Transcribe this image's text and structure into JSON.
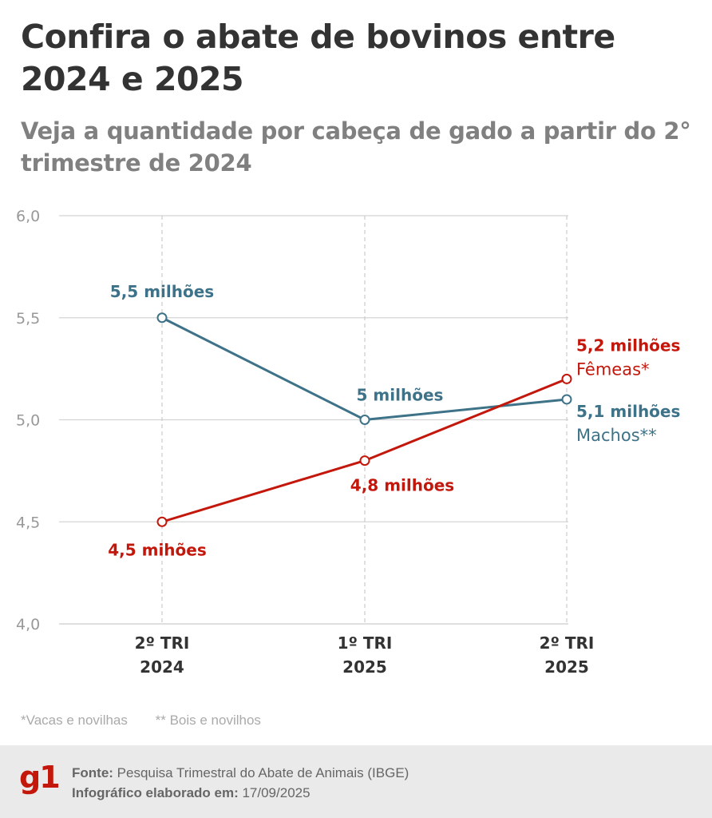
{
  "header": {
    "title": "Confira o abate de bovinos entre 2024 e 2025",
    "subtitle": "Veja a quantidade por cabeça de gado a partir do 2° trimestre de 2024"
  },
  "chart_data": {
    "type": "line",
    "categories": [
      [
        "2º TRI",
        "2024"
      ],
      [
        "1º TRI",
        "2025"
      ],
      [
        "2º TRI",
        "2025"
      ]
    ],
    "y_ticks": [
      "6,0",
      "5,5",
      "5,0",
      "4,5",
      "4,0"
    ],
    "ylim": [
      4.0,
      6.0
    ],
    "series": [
      {
        "name": "Machos**",
        "color": "#3d7288",
        "values": [
          5.5,
          5.0,
          5.1
        ],
        "labels": [
          "5,5 milhões",
          "5 milhões",
          "5,1 milhões"
        ]
      },
      {
        "name": "Fêmeas*",
        "color": "#c4170c",
        "values": [
          4.5,
          4.8,
          5.2
        ],
        "labels": [
          "4,5 mihões",
          "4,8 milhões",
          "5,2 milhões"
        ]
      }
    ],
    "grid": true
  },
  "notes": {
    "note1": "*Vacas e novilhas",
    "note2": "** Bois e novilhos"
  },
  "footer": {
    "logo": "g1",
    "source_label": "Fonte:",
    "source_text": " Pesquisa Trimestral do Abate de Animais (IBGE)",
    "credit_label": "Infográfico elaborado em:",
    "credit_text": " 17/09/2025"
  }
}
